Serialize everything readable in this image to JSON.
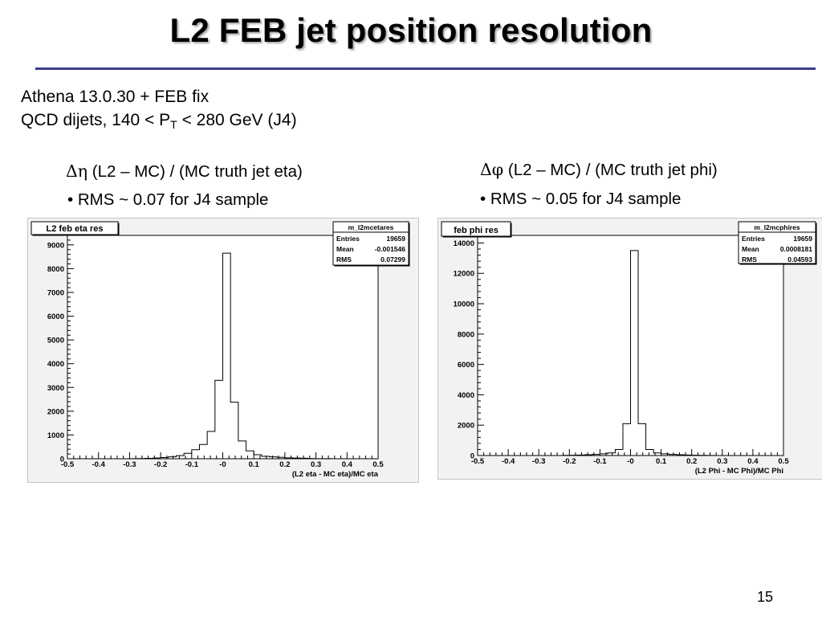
{
  "slide": {
    "title": "L2 FEB jet position resolution",
    "subtitle_line1": "Athena 13.0.30 + FEB fix",
    "subtitle_line2_prefix": "QCD dijets, 140 < P",
    "subtitle_line2_sub": "T",
    "subtitle_line2_suffix": " < 280 GeV (J4)",
    "page_number": "15",
    "accent_color": "#3a3c8c"
  },
  "left_panel": {
    "symbol": "Δη",
    "description": " (L2 – MC) / (MC truth jet eta)",
    "bullet": "• RMS ~ 0.07 for J4 sample"
  },
  "right_panel": {
    "symbol": "Δφ",
    "description": " (L2 – MC) / (MC truth jet phi)",
    "bullet": "• RMS ~ 0.05 for J4 sample"
  },
  "chart_data": [
    {
      "type": "bar",
      "histogram_title": "L2 feb eta res",
      "xlabel": "(L2 eta - MC eta)/MC eta",
      "ylabel": "",
      "xlim": [
        -0.5,
        0.5
      ],
      "ylim": [
        0,
        9400
      ],
      "x_ticks": [
        "-0.5",
        "-0.4",
        "-0.3",
        "-0.2",
        "-0.1",
        "-0",
        "0.1",
        "0.2",
        "0.3",
        "0.4",
        "0.5"
      ],
      "y_ticks": [
        "0",
        "1000",
        "2000",
        "3000",
        "4000",
        "5000",
        "6000",
        "7000",
        "8000",
        "9000"
      ],
      "stats": {
        "name": "m_l2mcetares",
        "rows": [
          {
            "label": "Entries",
            "value": "19659"
          },
          {
            "label": "Mean",
            "value": "-0.001546"
          },
          {
            "label": "RMS",
            "value": "0.07299"
          }
        ]
      },
      "bin_width": 0.025,
      "bin_centers": [
        -0.4875,
        -0.4625,
        -0.4375,
        -0.4125,
        -0.3875,
        -0.3625,
        -0.3375,
        -0.3125,
        -0.2875,
        -0.2625,
        -0.2375,
        -0.2125,
        -0.1875,
        -0.1625,
        -0.1375,
        -0.1125,
        -0.0875,
        -0.0625,
        -0.0375,
        -0.0125,
        0.0125,
        0.0375,
        0.0625,
        0.0875,
        0.1125,
        0.1375,
        0.1625,
        0.1875,
        0.2125,
        0.2375,
        0.2625,
        0.2875,
        0.3125,
        0.3375,
        0.3625,
        0.3875,
        0.4125,
        0.4375,
        0.4625,
        0.4875
      ],
      "values": [
        0,
        0,
        0,
        0,
        0,
        0,
        0,
        0,
        5,
        10,
        15,
        30,
        50,
        80,
        130,
        230,
        380,
        600,
        1150,
        3300,
        8650,
        2380,
        750,
        330,
        170,
        100,
        80,
        60,
        40,
        30,
        20,
        10,
        5,
        5,
        0,
        0,
        0,
        0,
        0,
        0
      ]
    },
    {
      "type": "bar",
      "histogram_title": "feb phi res",
      "xlabel": "(L2 Phi - MC Phi)/MC Phi",
      "ylabel": "",
      "xlim": [
        -0.5,
        0.5
      ],
      "ylim": [
        0,
        14500
      ],
      "x_ticks": [
        "-0.5",
        "-0.4",
        "-0.3",
        "-0.2",
        "-0.1",
        "-0",
        "0.1",
        "0.2",
        "0.3",
        "0.4",
        "0.5"
      ],
      "y_ticks": [
        "0",
        "2000",
        "4000",
        "6000",
        "8000",
        "10000",
        "12000",
        "14000"
      ],
      "stats": {
        "name": "m_l2mcphires",
        "rows": [
          {
            "label": "Entries",
            "value": "19659"
          },
          {
            "label": "Mean",
            "value": "0.0008181"
          },
          {
            "label": "RMS",
            "value": "0.04593"
          }
        ]
      },
      "bin_width": 0.025,
      "bin_centers": [
        -0.4875,
        -0.4625,
        -0.4375,
        -0.4125,
        -0.3875,
        -0.3625,
        -0.3375,
        -0.3125,
        -0.2875,
        -0.2625,
        -0.2375,
        -0.2125,
        -0.1875,
        -0.1625,
        -0.1375,
        -0.1125,
        -0.0875,
        -0.0625,
        -0.0375,
        -0.0125,
        0.0125,
        0.0375,
        0.0625,
        0.0875,
        0.1125,
        0.1375,
        0.1625,
        0.1875,
        0.2125,
        0.2375,
        0.2625,
        0.2875,
        0.3125,
        0.3375,
        0.3625,
        0.3875,
        0.4125,
        0.4375,
        0.4625,
        0.4875
      ],
      "values": [
        0,
        0,
        0,
        0,
        0,
        0,
        0,
        0,
        0,
        0,
        0,
        10,
        20,
        30,
        50,
        70,
        110,
        170,
        400,
        2100,
        13500,
        2100,
        400,
        170,
        110,
        70,
        50,
        30,
        20,
        10,
        5,
        0,
        0,
        0,
        0,
        0,
        0,
        0,
        0,
        0
      ]
    }
  ]
}
